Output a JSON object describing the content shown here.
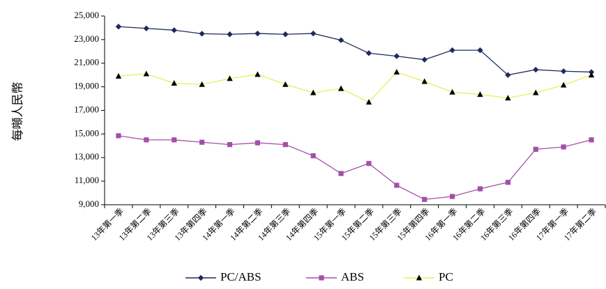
{
  "chart_data": {
    "type": "line",
    "title": "",
    "xlabel": "",
    "ylabel": "每噸人民幣",
    "ylim": [
      9000,
      25000
    ],
    "yticks": [
      9000,
      11000,
      13000,
      15000,
      17000,
      19000,
      21000,
      23000,
      25000
    ],
    "ytick_labels": [
      "9,000",
      "11,000",
      "13,000",
      "15,000",
      "17,000",
      "19,000",
      "21,000",
      "23,000",
      "25,000"
    ],
    "grid": false,
    "legend_position": "bottom",
    "categories": [
      "13年第一季",
      "13年第二季",
      "13年第三季",
      "13年第四季",
      "14年第一季",
      "14年第二季",
      "14年第三季",
      "14年第四季",
      "15年第一季",
      "15年第二季",
      "15年第三季",
      "15年第四季",
      "16年第一季",
      "16年第二季",
      "16年第三季",
      "16年第四季",
      "17年第一季",
      "17年第二季"
    ],
    "series": [
      {
        "name": "PC/ABS",
        "color": "#1f2a5c",
        "marker": "diamond",
        "values": [
          24100,
          23950,
          23800,
          23500,
          23450,
          23520,
          23450,
          23520,
          22950,
          21850,
          21600,
          21300,
          22100,
          22100,
          20000,
          20450,
          20320,
          20250
        ]
      },
      {
        "name": "ABS",
        "color": "#a34fa8",
        "marker": "square",
        "values": [
          14850,
          14500,
          14500,
          14300,
          14100,
          14250,
          14100,
          13150,
          11650,
          12500,
          10650,
          9450,
          9700,
          10350,
          10900,
          13700,
          13900,
          14500
        ]
      },
      {
        "name": "PC",
        "color": "#ecec5a",
        "marker": "triangle",
        "values": [
          19900,
          20100,
          19300,
          19200,
          19700,
          20050,
          19200,
          18500,
          18850,
          17700,
          20250,
          19450,
          18550,
          18350,
          18050,
          18500,
          19150,
          20000
        ]
      }
    ]
  }
}
